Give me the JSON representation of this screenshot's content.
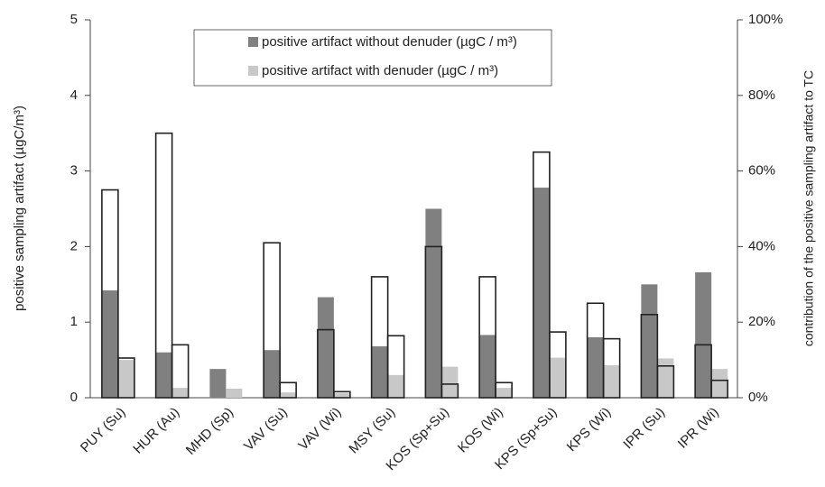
{
  "chart_data": {
    "type": "bar",
    "categories": [
      "PUY (Su)",
      "HUR (Au)",
      "MHD (Sp)",
      "VAV (Su)",
      "VAV (Wi)",
      "MSY (Su)",
      "KOS (Sp+Su)",
      "KOS (Wi)",
      "KPS (Sp+Su)",
      "KPS (Wi)",
      "IPR  (Su)",
      "IPR  (Wi)"
    ],
    "y_label": "positive sampling artifact (µgC/m³)",
    "y2_label": "contribution of the positive sampling artifact  to TC",
    "ylim": [
      0,
      5
    ],
    "yticks": [
      0,
      1,
      2,
      3,
      4,
      5
    ],
    "y2lim": [
      0,
      100
    ],
    "y2ticks": [
      {
        "value": 0,
        "label": "0%"
      },
      {
        "value": 20,
        "label": "20%"
      },
      {
        "value": 40,
        "label": "40%"
      },
      {
        "value": 60,
        "label": "60%"
      },
      {
        "value": 80,
        "label": "80%"
      },
      {
        "value": 100,
        "label": "100%"
      }
    ],
    "series": [
      {
        "name": "positive artifact without denuder (µgC / m³)",
        "color": "#808080",
        "values": [
          1.42,
          0.6,
          0.38,
          0.63,
          1.33,
          0.68,
          2.5,
          0.83,
          2.78,
          0.8,
          1.5,
          1.66
        ]
      },
      {
        "name": "positive artifact with denuder (µgC / m³)",
        "color": "#c8c8c8",
        "values": [
          0.5,
          0.13,
          0.12,
          0.07,
          0.06,
          0.3,
          0.41,
          0.13,
          0.53,
          0.43,
          0.52,
          0.38
        ]
      },
      {
        "axis": "y2",
        "color": "#222222",
        "values": [
          55,
          70,
          null,
          41,
          18,
          32,
          40,
          32,
          65,
          25,
          22,
          14
        ]
      },
      {
        "axis": "y2",
        "color": "#222222",
        "values": [
          10.5,
          14,
          null,
          4,
          1.6,
          16.4,
          3.6,
          4,
          17.4,
          15.6,
          8.4,
          4.6
        ]
      }
    ]
  }
}
